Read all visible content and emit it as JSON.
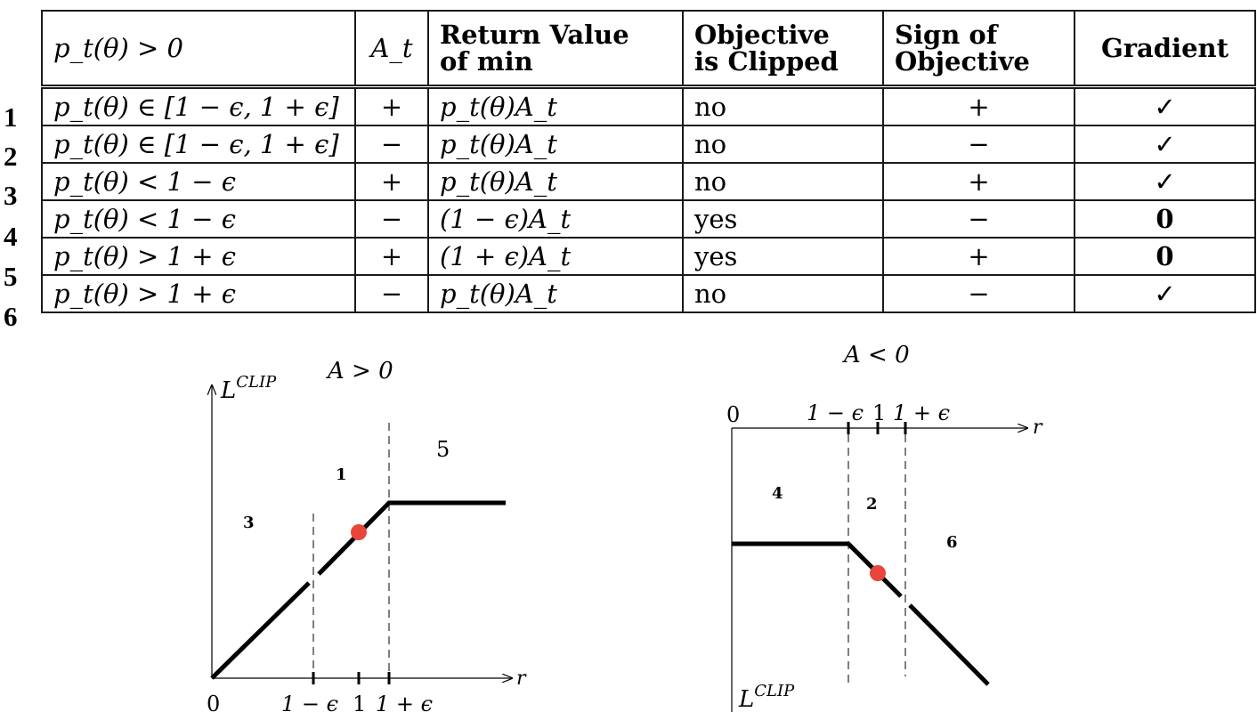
{
  "table": {
    "headers": [
      {
        "line1": "p_t(θ)  > 0",
        "line2": ""
      },
      {
        "line1": "A_t",
        "line2": ""
      },
      {
        "line1": "Return Value",
        "line2": "of min"
      },
      {
        "line1": "Objective",
        "line2": "is Clipped"
      },
      {
        "line1": "Sign of",
        "line2": "Objective"
      },
      {
        "line1": "Gradient",
        "line2": ""
      }
    ],
    "rows": [
      {
        "num": "1",
        "cond": "p_t(θ) ∈ [1 − ϵ, 1 + ϵ]",
        "adv": "+",
        "ret": "p_t(θ)A_t",
        "clipped": "no",
        "sign": "+",
        "grad": "✓"
      },
      {
        "num": "2",
        "cond": "p_t(θ) ∈ [1 − ϵ, 1 + ϵ]",
        "adv": "−",
        "ret": "p_t(θ)A_t",
        "clipped": "no",
        "sign": "−",
        "grad": "✓"
      },
      {
        "num": "3",
        "cond": "p_t(θ) < 1 − ϵ",
        "adv": "+",
        "ret": "p_t(θ)A_t",
        "clipped": "no",
        "sign": "+",
        "grad": "✓"
      },
      {
        "num": "4",
        "cond": "p_t(θ) < 1 − ϵ",
        "adv": "−",
        "ret": "(1 − ϵ)A_t",
        "clipped": "yes",
        "sign": "−",
        "grad": "0"
      },
      {
        "num": "5",
        "cond": "p_t(θ) > 1 + ϵ",
        "adv": "+",
        "ret": "(1 + ϵ)A_t",
        "clipped": "yes",
        "sign": "+",
        "grad": "0"
      },
      {
        "num": "6",
        "cond": "p_t(θ) > 1 + ϵ",
        "adv": "−",
        "ret": "p_t(θ)A_t",
        "clipped": "no",
        "sign": "−",
        "grad": "✓"
      }
    ]
  },
  "plot_left": {
    "title": "A > 0",
    "ylabel": "L",
    "ylabel_sup": "CLIP",
    "xlabel": "r",
    "ticks": [
      "0",
      "1 − ϵ",
      "1",
      "1 + ϵ"
    ],
    "regions": [
      "3",
      "1",
      "5"
    ]
  },
  "plot_right": {
    "title": "A < 0",
    "ylabel": "L",
    "ylabel_sup": "CLIP",
    "xlabel": "r",
    "ticks": [
      "0",
      "1 − ϵ",
      "1",
      "1 + ϵ"
    ],
    "regions": [
      "4",
      "2",
      "6"
    ]
  },
  "colors": {
    "point": "#e8463a",
    "line": "#000000"
  }
}
